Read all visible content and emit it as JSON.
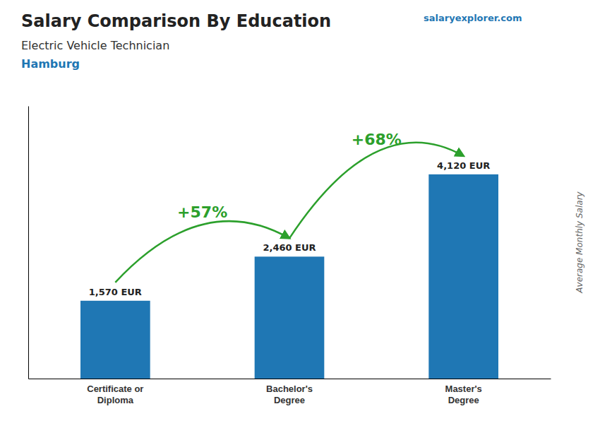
{
  "chart_data": {
    "type": "bar",
    "title": "Salary Comparison By Education",
    "subtitle": "Electric Vehicle Technician",
    "annotations": [
      "Hamburg",
      "salary",
      "explorer.com",
      "+57%",
      "+68%"
    ],
    "ylabel": "Average Monthly Salary",
    "categories": [
      "Certificate or\nDiploma",
      "Bachelor's\nDegree",
      "Master's\nDegree"
    ],
    "values": [
      1570,
      2460,
      4120
    ],
    "value_labels": [
      "1,570 EUR",
      "2,460 EUR",
      "4,120 EUR"
    ],
    "data_labels": true,
    "ylim": [
      0,
      5500
    ],
    "tick_labels": "x",
    "grid": false
  }
}
